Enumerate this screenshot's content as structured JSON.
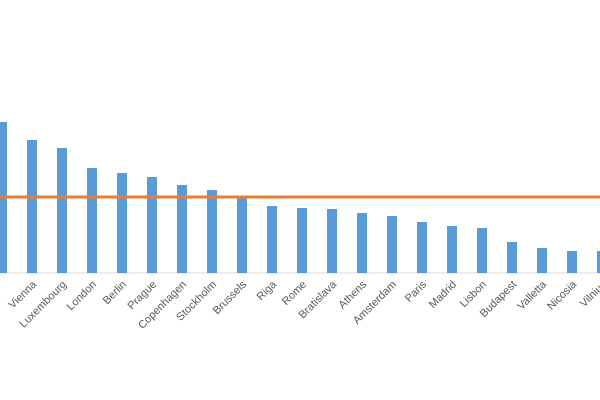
{
  "chart_data": {
    "type": "bar",
    "categories": [
      null,
      "Vienna",
      "Luxembourg",
      "London",
      "Berlin",
      "Prague",
      "Copenhagen",
      "Stockholm",
      "Brussels",
      "Riga",
      "Rome",
      "Bratislava",
      "Athens",
      "Amsterdam",
      "Paris",
      "Madrid",
      "Lisbon",
      "Budapest",
      "Valletta",
      "Nicosia",
      "Vilnius"
    ],
    "values": [
      151,
      133,
      125,
      105,
      100,
      96,
      88,
      83,
      76,
      67,
      65,
      64,
      60,
      57,
      51,
      47,
      45,
      31,
      25,
      22,
      22
    ],
    "color": "#5b9bd5",
    "ylim": [
      0,
      200
    ],
    "reference_line": {
      "value": 76,
      "color": "#ed7d31"
    }
  }
}
